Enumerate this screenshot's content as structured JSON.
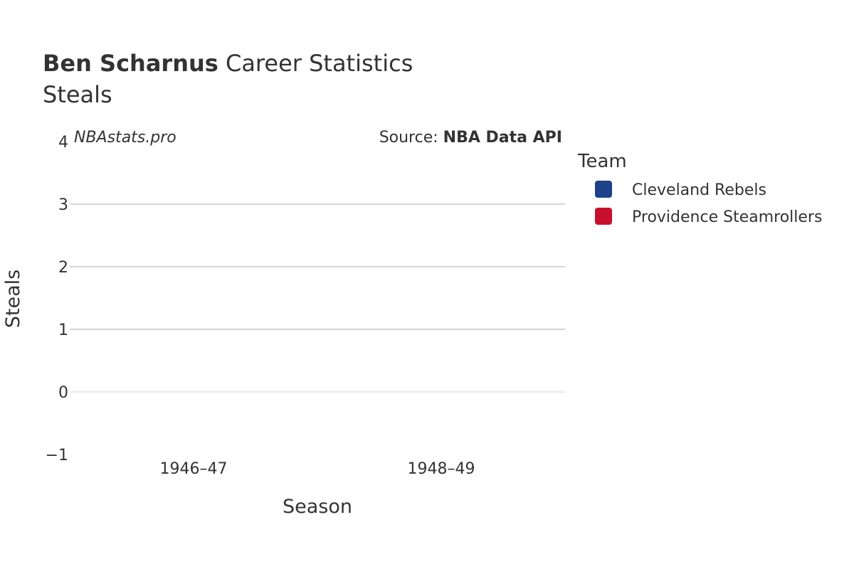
{
  "title": {
    "player": "Ben Scharnus",
    "suffix": " Career Statistics",
    "subtitle": "Steals"
  },
  "watermark": "NBAstats.pro",
  "source": {
    "prefix": "Source: ",
    "name": "NBA Data API"
  },
  "legend": {
    "title": "Team",
    "entries": [
      {
        "label": "Cleveland Rebels",
        "color": "#1D428A"
      },
      {
        "label": "Providence Steamrollers",
        "color": "#C8102E"
      }
    ]
  },
  "chart_data": {
    "type": "bar",
    "categories": [
      "1946–47",
      "1948–49"
    ],
    "series": [
      {
        "name": "Cleveland Rebels",
        "values": [
          0,
          null
        ]
      },
      {
        "name": "Providence Steamrollers",
        "values": [
          null,
          0
        ]
      }
    ],
    "xlabel": "Season",
    "ylabel": "Steals",
    "ylim": [
      -1,
      4
    ],
    "yticks": [
      {
        "value": -1,
        "label": "−1"
      },
      {
        "value": 0,
        "label": "0"
      },
      {
        "value": 1,
        "label": "1"
      },
      {
        "value": 2,
        "label": "2"
      },
      {
        "value": 3,
        "label": "3"
      },
      {
        "value": 4,
        "label": "4"
      }
    ],
    "grid": true,
    "legend_position": "right"
  }
}
